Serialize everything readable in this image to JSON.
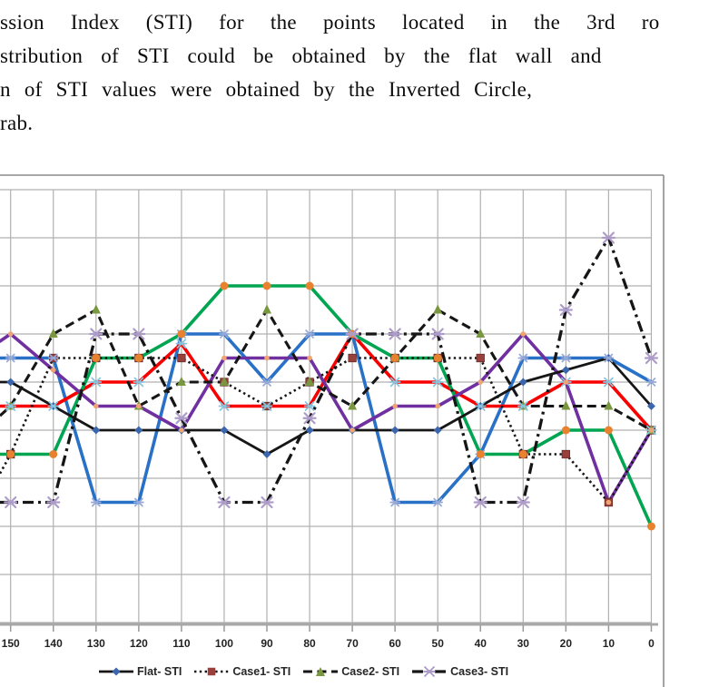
{
  "document_text": {
    "lines": [
      "ssion Index (STI) for the points located in the 3rd ro",
      "stribution of STI could be obtained by the flat wall and",
      "n of STI values were obtained by the Inverted Circle,",
      "rab."
    ]
  },
  "chart_data": {
    "type": "line",
    "title": "",
    "xlabel": "",
    "ylabel": "",
    "x_categories": [
      "150",
      "140",
      "130",
      "120",
      "110",
      "100",
      "90",
      "80",
      "70",
      "60",
      "50",
      "40",
      "30",
      "20",
      "10",
      "0"
    ],
    "y_axis": {
      "visible": false,
      "unit": "gridline index above bottom axis (y-axis labels cropped out of view)",
      "gridlines": 10
    },
    "legend_position": "bottom",
    "grid": true,
    "series": [
      {
        "name": "series-blue",
        "in_legend": false,
        "line": {
          "color": "#2871C7",
          "width": 3.6,
          "dash": "solid"
        },
        "marker": {
          "shape": "x",
          "color": "#96A9D8",
          "size": 8
        },
        "edge_value": 5.5,
        "values": [
          5.5,
          5.5,
          2.5,
          2.5,
          6,
          6,
          5,
          6,
          6,
          2.5,
          2.5,
          3.5,
          5.5,
          5.5,
          5.5,
          5
        ]
      },
      {
        "name": "series-red",
        "in_legend": false,
        "line": {
          "color": "#F80000",
          "width": 3.6,
          "dash": "solid"
        },
        "marker": {
          "shape": "x",
          "color": "#86C5DD",
          "size": 9
        },
        "edge_value": 4.5,
        "values": [
          4.5,
          4.5,
          5,
          5,
          5.8,
          4.5,
          4.5,
          4.5,
          6,
          5,
          5,
          4.5,
          4.5,
          5,
          5,
          4
        ]
      },
      {
        "name": "series-green",
        "in_legend": false,
        "line": {
          "color": "#00A551",
          "width": 3.6,
          "dash": "solid"
        },
        "marker": {
          "shape": "circle",
          "color": "#E8822F",
          "size": 9
        },
        "edge_value": 3.5,
        "values": [
          3.5,
          3.5,
          5.5,
          5.5,
          6,
          7,
          7,
          7,
          6,
          5.5,
          5.5,
          3.5,
          3.5,
          4,
          4,
          2
        ]
      },
      {
        "name": "series-purple",
        "in_legend": false,
        "line": {
          "color": "#7030A0",
          "width": 3.6,
          "dash": "solid"
        },
        "marker": {
          "shape": "circle",
          "color": "#F0A473",
          "size": 5.6
        },
        "edge_value": 5.85,
        "values": [
          6,
          5.25,
          4.5,
          4.5,
          4,
          5.5,
          5.5,
          5.5,
          4,
          4.5,
          4.5,
          5,
          6,
          5,
          2.5,
          4
        ]
      },
      {
        "name": "Flat- STI",
        "in_legend": true,
        "line": {
          "color": "#161616",
          "width": 2.8,
          "dash": "solid"
        },
        "marker": {
          "shape": "diamond",
          "color": "#3B66AE",
          "size": 9
        },
        "edge_value": 5,
        "values": [
          5,
          4.5,
          4,
          4,
          4,
          4,
          3.5,
          4,
          4,
          4,
          4,
          4.5,
          5,
          5.25,
          5.5,
          4.5
        ]
      },
      {
        "name": "Case1- STI",
        "in_legend": true,
        "line": {
          "color": "#161616",
          "width": 2.6,
          "dash": "dotted"
        },
        "marker": {
          "shape": "square",
          "color": "#99403C",
          "size": 8.5
        },
        "edge_value": 3.1,
        "values": [
          3.5,
          5.5,
          5.5,
          5.5,
          5.5,
          5,
          4.5,
          5,
          5.5,
          5.5,
          5.5,
          5.5,
          3.5,
          3.5,
          2.5,
          4
        ]
      },
      {
        "name": "Case2- STI",
        "in_legend": true,
        "line": {
          "color": "#161616",
          "width": 3.1,
          "dash": "dashed"
        },
        "marker": {
          "shape": "triangle",
          "color": "#79973F",
          "size": 10
        },
        "edge_value": 4.3,
        "values": [
          4.5,
          6,
          6.5,
          4.5,
          5,
          5,
          6.5,
          5,
          4.5,
          5.5,
          6.5,
          6,
          4.5,
          4.5,
          4.5,
          4
        ]
      },
      {
        "name": "Case3- STI",
        "in_legend": true,
        "line": {
          "color": "#161616",
          "width": 3.3,
          "dash": "dashdot"
        },
        "marker": {
          "shape": "x",
          "color": "#AD9CC9",
          "size": 11
        },
        "edge_value": 2.5,
        "values": [
          2.5,
          2.5,
          6,
          6,
          4.25,
          2.5,
          2.5,
          4.25,
          6,
          6,
          6,
          2.5,
          2.5,
          6.5,
          8,
          5.5
        ]
      }
    ]
  }
}
